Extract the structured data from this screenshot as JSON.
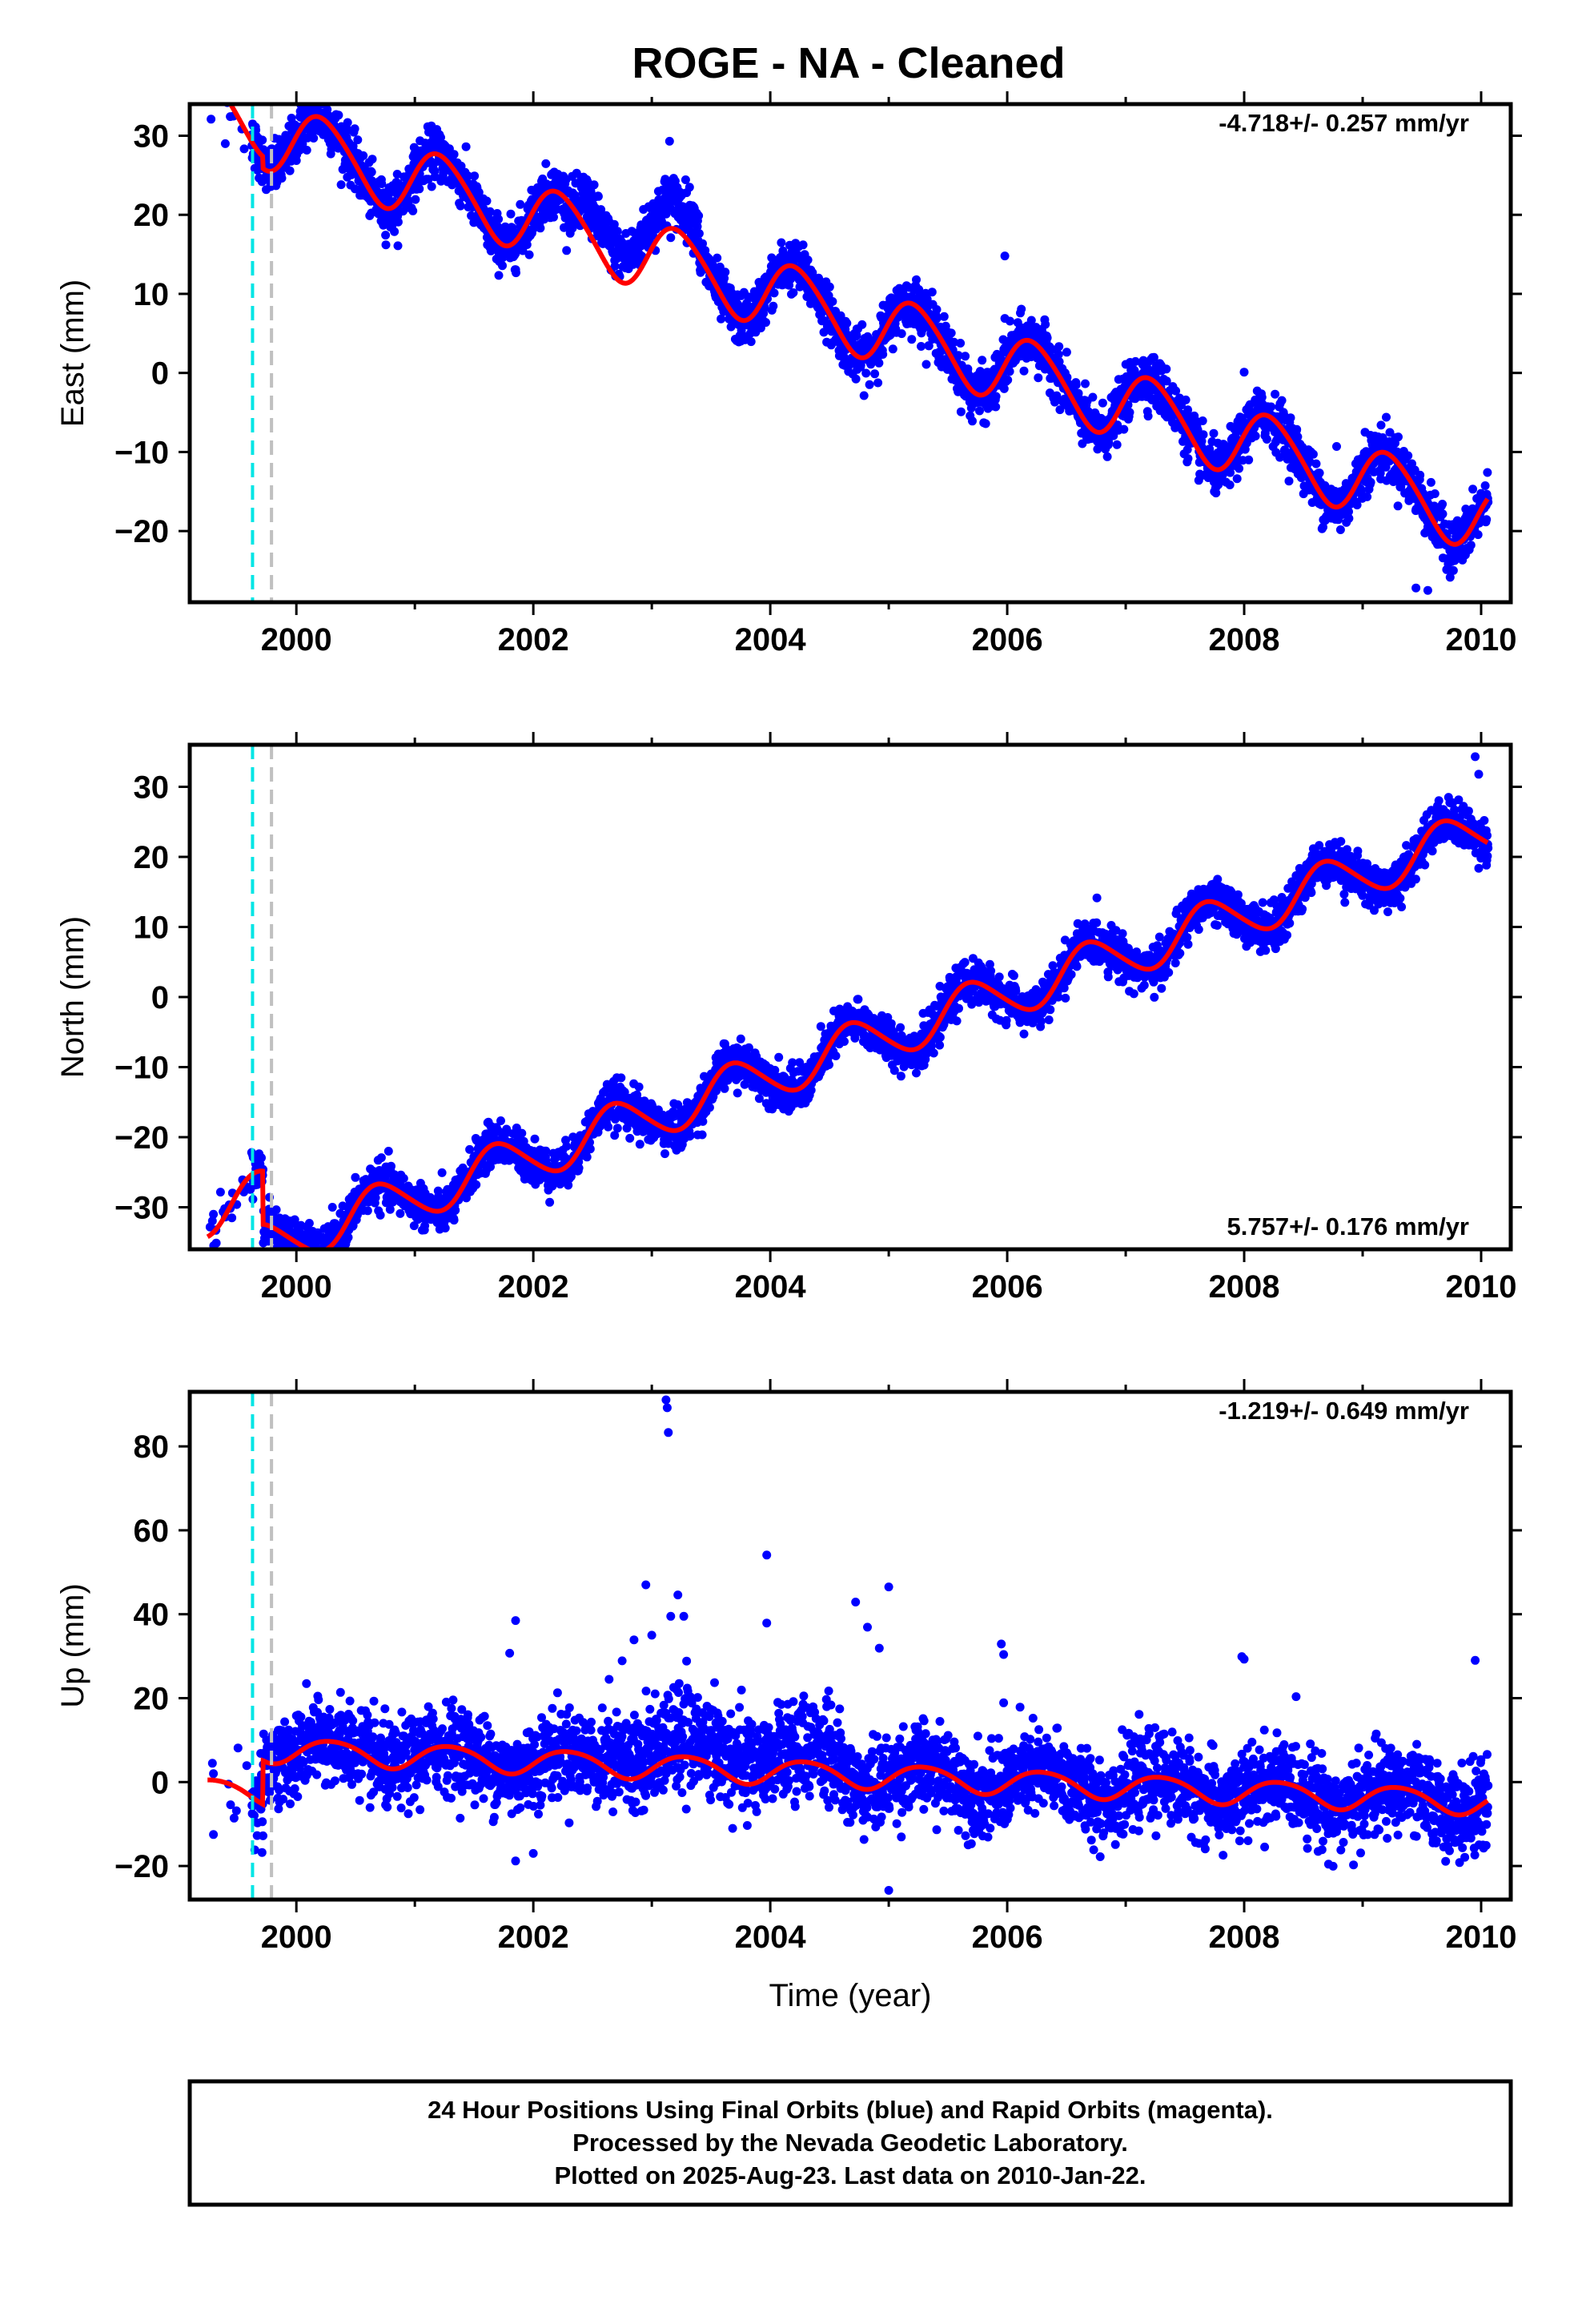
{
  "page": {
    "title": "ROGE  - NA - Cleaned"
  },
  "colors": {
    "final_orbit_points": "#0000ff",
    "model_fit": "#ff0000",
    "marker_1": "#00e5e5",
    "marker_2": "#c0c0c0"
  },
  "chart_data": [
    {
      "type": "scatter",
      "name": "east",
      "ylabel": "East (mm)",
      "rate_text": "-4.718+/- 0.257 mm/yr",
      "rate_position": "top-right",
      "xlim": [
        1999.1,
        2010.25
      ],
      "ylim": [
        -29,
        34
      ],
      "x_ticks": [
        2000,
        2002,
        2004,
        2006,
        2008,
        2010
      ],
      "x_tick_labels": [
        "2000",
        "2002",
        "2004",
        "2006",
        "2008",
        "2010"
      ],
      "y_ticks": [
        30,
        20,
        10,
        0,
        -10,
        -20
      ],
      "y_tick_labels": [
        "30",
        "20",
        "10",
        "0",
        "−10",
        "−20"
      ],
      "marker_lines_x": [
        1999.63,
        1999.79
      ],
      "data_span": [
        1999.25,
        2010.06
      ],
      "model": {
        "pre_jump_offset": 30.5,
        "offset": 29.0,
        "rate": -4.718,
        "annual_sin": 4.3,
        "annual_cos": 0.6,
        "semiannual_sin": 0.4,
        "semiannual_cos": 0.3
      },
      "noise_sigma": 1.6,
      "outliers": [
        {
          "x": 1999.28,
          "y": 32.1
        },
        {
          "x": 1999.4,
          "y": 29.0
        },
        {
          "x": 2003.15,
          "y": 29.3
        },
        {
          "x": 2003.15,
          "y": 23.6
        },
        {
          "x": 2003.18,
          "y": 24.4
        },
        {
          "x": 2005.98,
          "y": 14.8
        },
        {
          "x": 2005.98,
          "y": 6.9
        },
        {
          "x": 2006.15,
          "y": 5.0
        },
        {
          "x": 2008.0,
          "y": 0.1
        },
        {
          "x": 2008.05,
          "y": -4.0
        },
        {
          "x": 2008.78,
          "y": -9.3
        },
        {
          "x": 2009.02,
          "y": -7.5
        },
        {
          "x": 2009.93,
          "y": -14.7
        },
        {
          "x": 2009.45,
          "y": -27.2
        },
        {
          "x": 2009.55,
          "y": -27.5
        }
      ]
    },
    {
      "type": "scatter",
      "name": "north",
      "ylabel": "North (mm)",
      "rate_text": "5.757+/- 0.176 mm/yr",
      "rate_position": "bottom-right",
      "xlim": [
        1999.1,
        2010.25
      ],
      "ylim": [
        -36,
        36
      ],
      "x_ticks": [
        2000,
        2002,
        2004,
        2006,
        2008,
        2010
      ],
      "x_tick_labels": [
        "2000",
        "2002",
        "2004",
        "2006",
        "2008",
        "2010"
      ],
      "y_ticks": [
        30,
        20,
        10,
        0,
        -10,
        -20,
        -30
      ],
      "y_tick_labels": [
        "30",
        "20",
        "10",
        "0",
        "−10",
        "−20",
        "−30"
      ],
      "marker_lines_x": [
        1999.63,
        1999.79
      ],
      "data_span": [
        1999.25,
        2010.06
      ],
      "model": {
        "pre_jump_offset": -26.5,
        "offset": -34.1,
        "rate": 5.757,
        "annual_sin": -3.2,
        "annual_cos": -1.1,
        "semiannual_sin": 0.3,
        "semiannual_cos": 0.2
      },
      "noise_sigma": 1.5,
      "outliers": [
        {
          "x": 1999.3,
          "y": -31.0
        },
        {
          "x": 1999.4,
          "y": -31.4
        },
        {
          "x": 2001.0,
          "y": -30.9
        },
        {
          "x": 2002.9,
          "y": -21.0
        },
        {
          "x": 2003.0,
          "y": -19.0
        },
        {
          "x": 2008.85,
          "y": 13.5
        },
        {
          "x": 2009.95,
          "y": 34.3
        },
        {
          "x": 2009.98,
          "y": 31.8
        }
      ]
    },
    {
      "type": "scatter",
      "name": "up",
      "ylabel": "Up (mm)",
      "rate_text": "-1.219+/- 0.649 mm/yr",
      "rate_position": "top-right",
      "xlim": [
        1999.1,
        2010.25
      ],
      "ylim": [
        -28,
        93
      ],
      "x_ticks": [
        2000,
        2002,
        2004,
        2006,
        2008,
        2010
      ],
      "x_tick_labels": [
        "2000",
        "2002",
        "2004",
        "2006",
        "2008",
        "2010"
      ],
      "y_ticks": [
        80,
        60,
        40,
        20,
        0,
        -20
      ],
      "y_tick_labels": [
        "80",
        "60",
        "40",
        "20",
        "0",
        "−20"
      ],
      "marker_lines_x": [
        1999.63,
        1999.79
      ],
      "xlabel": "Time (year)",
      "data_span": [
        1999.25,
        2010.06
      ],
      "model": {
        "pre_jump_offset": -3.0,
        "offset": 7.4,
        "rate": -1.219,
        "annual_sin": 2.8,
        "annual_cos": -0.9,
        "semiannual_sin": 0.3,
        "semiannual_cos": 0.2
      },
      "noise_sigma": 5.0,
      "outliers": [
        {
          "x": 1999.3,
          "y": -12.5
        },
        {
          "x": 1999.3,
          "y": 2.0
        },
        {
          "x": 2001.85,
          "y": -18.8
        },
        {
          "x": 2001.85,
          "y": 38.5
        },
        {
          "x": 2001.8,
          "y": 30.7
        },
        {
          "x": 2002.0,
          "y": -17.0
        },
        {
          "x": 2002.75,
          "y": 28.9
        },
        {
          "x": 2002.85,
          "y": 33.9
        },
        {
          "x": 2002.95,
          "y": 47.0
        },
        {
          "x": 2003.0,
          "y": 35.0
        },
        {
          "x": 2003.12,
          "y": 91.1
        },
        {
          "x": 2003.13,
          "y": 89.2
        },
        {
          "x": 2003.14,
          "y": 83.3
        },
        {
          "x": 2003.16,
          "y": 39.5
        },
        {
          "x": 2003.22,
          "y": 44.6
        },
        {
          "x": 2003.27,
          "y": 39.5
        },
        {
          "x": 2003.97,
          "y": 54.1
        },
        {
          "x": 2003.97,
          "y": 37.9
        },
        {
          "x": 2004.72,
          "y": 42.9
        },
        {
          "x": 2004.82,
          "y": 36.9
        },
        {
          "x": 2004.92,
          "y": 31.9
        },
        {
          "x": 2005.0,
          "y": 46.5
        },
        {
          "x": 2005.0,
          "y": -25.8
        },
        {
          "x": 2005.95,
          "y": 32.9
        },
        {
          "x": 2005.97,
          "y": 30.4
        },
        {
          "x": 2005.97,
          "y": 18.9
        },
        {
          "x": 2007.98,
          "y": 29.9
        },
        {
          "x": 2008.0,
          "y": 29.3
        },
        {
          "x": 2009.95,
          "y": 29.0
        }
      ]
    }
  ],
  "footer": {
    "line1": "24 Hour Positions Using Final Orbits (blue) and Rapid Orbits (magenta).",
    "line2": "Processed by the Nevada Geodetic Laboratory.",
    "line3": "Plotted on 2025-Aug-23. Last data on 2010-Jan-22."
  }
}
